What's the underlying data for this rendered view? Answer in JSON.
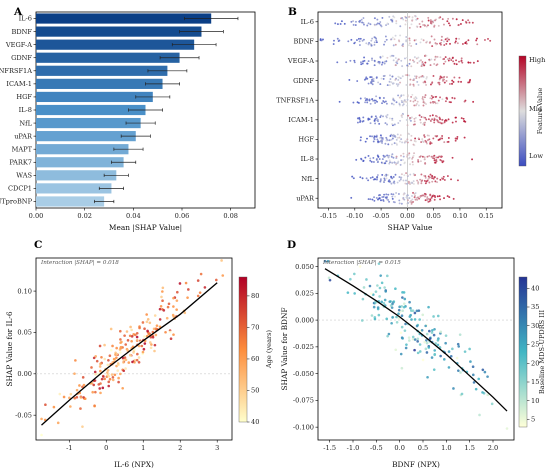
{
  "panels": {
    "A": "A",
    "B": "B",
    "C": "C",
    "D": "D"
  },
  "chart_data": [
    {
      "panel": "A",
      "type": "bar",
      "orientation": "horizontal",
      "xlabel": "Mean |SHAP Value|",
      "xlim": [
        0,
        0.09
      ],
      "xticks": [
        "0.00",
        "0.02",
        "0.04",
        "0.06",
        "0.08"
      ],
      "categories": [
        "IL-6",
        "BDNF",
        "VEGF-A",
        "GDNF",
        "TNFRSF1A",
        "ICAM-1",
        "HGF",
        "IL-8",
        "NfL",
        "uPAR",
        "MAPT",
        "PARK7",
        "WAS",
        "CDCP1",
        "NTproBNP"
      ],
      "values": [
        0.072,
        0.068,
        0.065,
        0.059,
        0.054,
        0.052,
        0.048,
        0.045,
        0.043,
        0.041,
        0.038,
        0.036,
        0.033,
        0.031,
        0.028
      ],
      "errors": [
        0.011,
        0.009,
        0.009,
        0.008,
        0.008,
        0.007,
        0.007,
        0.007,
        0.006,
        0.006,
        0.006,
        0.005,
        0.005,
        0.005,
        0.004
      ],
      "colors": {
        "dark": "#0b3f86",
        "light": "#a9cde6"
      },
      "grid": false
    },
    {
      "panel": "B",
      "type": "scatter",
      "subtype": "beeswarm",
      "xlabel": "SHAP Value",
      "xlim": [
        -0.17,
        0.18
      ],
      "xticks": [
        "-0.15",
        "-0.10",
        "-0.05",
        "0.00",
        "0.05",
        "0.10",
        "0.15"
      ],
      "categories": [
        "IL-6",
        "BDNF",
        "VEGF-A",
        "GDNF",
        "TNFRSF1A",
        "ICAM-1",
        "HGF",
        "IL-8",
        "NfL",
        "uPAR"
      ],
      "spread": [
        0.13,
        0.15,
        0.12,
        0.11,
        0.1,
        0.1,
        0.09,
        0.09,
        0.08,
        0.07
      ],
      "colorbar": {
        "label": "Feature Value",
        "ticks": [
          "High",
          "Mid",
          "Low"
        ],
        "low": "#3b4cc0",
        "mid": "#dddddd",
        "high": "#b40426"
      }
    },
    {
      "panel": "C",
      "type": "scatter",
      "xlabel": "IL-6 (NPX)",
      "ylabel": "SHAP Value for IL-6",
      "xlim": [
        -1.9,
        3.4
      ],
      "ylim": [
        -0.08,
        0.14
      ],
      "xticks": [
        "-1",
        "0",
        "1",
        "2",
        "3"
      ],
      "yticks": [
        "-0.05",
        "0.00",
        "0.05",
        "0.10"
      ],
      "annotation": "Interaction |SHAP| = 0.018",
      "trend": [
        [
          -1.75,
          -0.062
        ],
        [
          -1.0,
          -0.032
        ],
        [
          0.0,
          0.006
        ],
        [
          1.0,
          0.04
        ],
        [
          2.0,
          0.072
        ],
        [
          3.0,
          0.11
        ]
      ],
      "colorbar": {
        "label": "Age (years)",
        "ticks": [
          "40",
          "50",
          "60",
          "70",
          "80"
        ],
        "range": [
          40,
          86
        ],
        "low": "#ffffcc",
        "mid": "#fd8d3c",
        "high": "#b10026"
      }
    },
    {
      "panel": "D",
      "type": "scatter",
      "xlabel": "BDNF (NPX)",
      "ylabel": "SHAP Value for BDNF",
      "xlim": [
        -1.75,
        2.45
      ],
      "ylim": [
        -0.112,
        0.058
      ],
      "xticks": [
        "-1.5",
        "-1.0",
        "-0.5",
        "0.0",
        "0.5",
        "1.0",
        "1.5",
        "2.0"
      ],
      "yticks": [
        "-0.100",
        "-0.075",
        "-0.050",
        "-0.025",
        "0.000",
        "0.025",
        "0.050"
      ],
      "annotation": "Interaction |SHAP| = 0.015",
      "trend": [
        [
          -1.6,
          0.048
        ],
        [
          -1.0,
          0.032
        ],
        [
          -0.5,
          0.018
        ],
        [
          0.0,
          0.003
        ],
        [
          0.5,
          -0.014
        ],
        [
          1.0,
          -0.032
        ],
        [
          1.5,
          -0.052
        ],
        [
          2.0,
          -0.072
        ],
        [
          2.3,
          -0.085
        ]
      ],
      "colorbar": {
        "label": "Baseline MDS-UPDRS III",
        "ticks": [
          "5",
          "10",
          "15",
          "20",
          "25",
          "30",
          "35",
          "40"
        ],
        "range": [
          3,
          43
        ],
        "low": "#ffffd9",
        "mid": "#41b6c4",
        "high": "#253494"
      }
    }
  ]
}
